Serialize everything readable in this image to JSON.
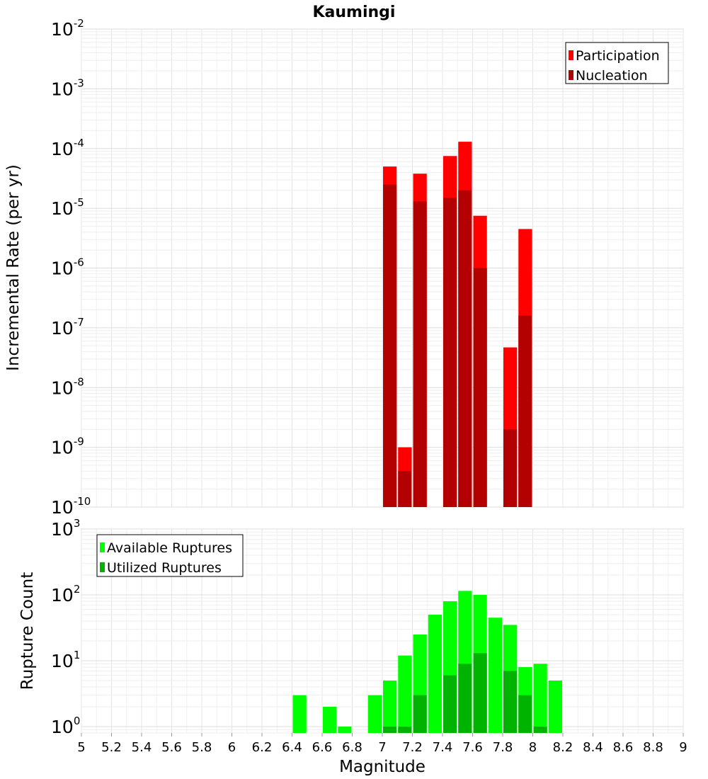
{
  "chart_data": [
    {
      "type": "bar",
      "title": "Kaumingi",
      "ylabel": "Incremental Rate (per yr)",
      "yscale": "log",
      "ylim": [
        1e-10,
        0.01
      ],
      "xlim": [
        5,
        9
      ],
      "bar_width": 0.1,
      "legend_position": "top-right",
      "series": [
        {
          "name": "Participation",
          "color": "#ff0000",
          "x": [
            7.05,
            7.15,
            7.25,
            7.45,
            7.55,
            7.65,
            7.85,
            7.95
          ],
          "values": [
            5e-05,
            1e-09,
            3.8e-05,
            7.5e-05,
            0.00013,
            7.5e-06,
            4.7e-08,
            4.5e-06
          ]
        },
        {
          "name": "Nucleation",
          "color": "#b30000",
          "x": [
            7.05,
            7.15,
            7.25,
            7.45,
            7.55,
            7.65,
            7.85,
            7.95
          ],
          "values": [
            2.5e-05,
            4e-10,
            1.3e-05,
            1.5e-05,
            2e-05,
            1e-06,
            2e-09,
            1.6e-07
          ]
        }
      ]
    },
    {
      "type": "bar",
      "xlabel": "Magnitude",
      "ylabel": "Rupture Count",
      "yscale": "log",
      "ylim": [
        0.8,
        1000
      ],
      "xlim": [
        5,
        9
      ],
      "bar_width": 0.1,
      "xticks": [
        "5",
        "5.2",
        "5.4",
        "5.6",
        "5.8",
        "6",
        "6.2",
        "6.4",
        "6.6",
        "6.8",
        "7",
        "7.2",
        "7.4",
        "7.6",
        "7.8",
        "8",
        "8.2",
        "8.4",
        "8.6",
        "8.8",
        "9"
      ],
      "legend_position": "top-left",
      "series": [
        {
          "name": "Available Ruptures",
          "color": "#00ff00",
          "x": [
            6.45,
            6.65,
            6.75,
            6.95,
            7.05,
            7.15,
            7.25,
            7.35,
            7.45,
            7.55,
            7.65,
            7.75,
            7.85,
            7.95,
            8.05,
            8.15
          ],
          "values": [
            3,
            2,
            1,
            3,
            5,
            12,
            25,
            50,
            80,
            115,
            100,
            45,
            35,
            8,
            9,
            5
          ]
        },
        {
          "name": "Utilized Ruptures",
          "color": "#00b300",
          "x": [
            7.05,
            7.15,
            7.25,
            7.45,
            7.55,
            7.65,
            7.85,
            7.95,
            8.05
          ],
          "values": [
            1,
            1,
            3,
            6,
            9,
            13,
            7,
            3,
            1
          ]
        }
      ]
    }
  ]
}
